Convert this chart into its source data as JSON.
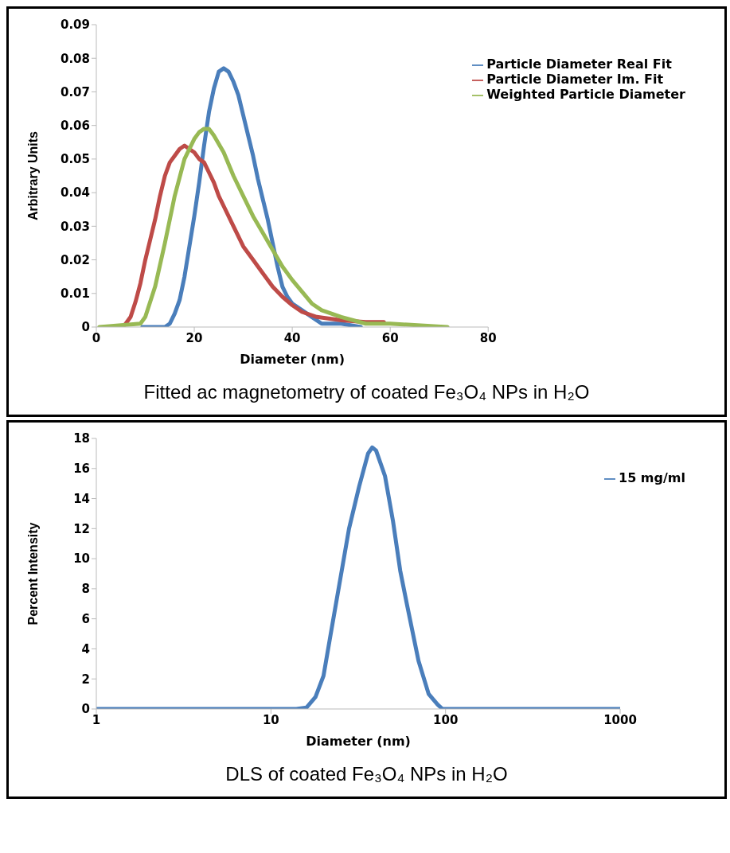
{
  "chart_data": [
    {
      "type": "line",
      "xlabel": "Diameter (nm)",
      "ylabel": "Arbitrary Units",
      "xlim": [
        0,
        80
      ],
      "xticks": [
        0,
        20,
        40,
        60,
        80
      ],
      "ylim": [
        0,
        0.09
      ],
      "yticks": [
        0,
        0.01,
        0.02,
        0.03,
        0.04,
        0.05,
        0.06,
        0.07,
        0.08,
        0.09
      ],
      "grid": false,
      "legend": "top right",
      "line_style": "solid",
      "annotations": [
        "Fitted ac magnetometry of coated Fe₃O₄ NPs in H₂O"
      ],
      "series": [
        {
          "name": "Particle Diameter Real Fit",
          "color": "#4a7ebb",
          "x": [
            9.4,
            14,
            15,
            16,
            17,
            18,
            19,
            20,
            21,
            22,
            23,
            24,
            25,
            26,
            27,
            28,
            29,
            30,
            31,
            32,
            33,
            34,
            35,
            36,
            37,
            38,
            39,
            40,
            42,
            44,
            46,
            50,
            54
          ],
          "values": [
            0,
            0,
            0.001,
            0.004,
            0.008,
            0.015,
            0.024,
            0.033,
            0.043,
            0.054,
            0.064,
            0.071,
            0.076,
            0.077,
            0.076,
            0.073,
            0.069,
            0.063,
            0.057,
            0.051,
            0.044,
            0.038,
            0.032,
            0.025,
            0.018,
            0.012,
            0.009,
            0.007,
            0.005,
            0.003,
            0.001,
            0.001,
            0
          ]
        },
        {
          "name": "Particle Diameter Im. Fit",
          "color": "#be4b48",
          "x": [
            5.3,
            6,
            7,
            8,
            9,
            10,
            11,
            12,
            13,
            14,
            15,
            16,
            17,
            18,
            19,
            20,
            21,
            22,
            23,
            24,
            25,
            26,
            28,
            30,
            32,
            34,
            36,
            38,
            40,
            42,
            45,
            50,
            55,
            58.7
          ],
          "values": [
            0,
            0.001,
            0.003,
            0.0075,
            0.013,
            0.02,
            0.026,
            0.032,
            0.039,
            0.045,
            0.049,
            0.051,
            0.053,
            0.054,
            0.053,
            0.052,
            0.05,
            0.049,
            0.046,
            0.043,
            0.039,
            0.036,
            0.03,
            0.024,
            0.02,
            0.016,
            0.012,
            0.009,
            0.0065,
            0.0045,
            0.003,
            0.002,
            0.0015,
            0.0015
          ]
        },
        {
          "name": "Weighted Particle Diameter",
          "color": "#98b954",
          "x": [
            0.6,
            9,
            10,
            12,
            14,
            16,
            18,
            20,
            21,
            22,
            23,
            24,
            26,
            28,
            30,
            32,
            34,
            36,
            38,
            40,
            42,
            44,
            46,
            50,
            55,
            60,
            71.7
          ],
          "values": [
            0,
            0.001,
            0.003,
            0.012,
            0.025,
            0.039,
            0.05,
            0.056,
            0.058,
            0.059,
            0.059,
            0.057,
            0.052,
            0.045,
            0.039,
            0.033,
            0.028,
            0.023,
            0.018,
            0.014,
            0.0105,
            0.007,
            0.005,
            0.003,
            0.001,
            0.001,
            0
          ]
        }
      ]
    },
    {
      "type": "line",
      "xlabel": "Diameter (nm)",
      "ylabel": "Percent Intensity",
      "log": "x",
      "xlim": [
        1,
        1000
      ],
      "xticks": [
        1,
        10,
        100,
        1000
      ],
      "ylim": [
        0,
        18
      ],
      "yticks": [
        0,
        2,
        4,
        6,
        8,
        10,
        12,
        14,
        16,
        18
      ],
      "grid": false,
      "legend": "top right",
      "line_style": "solid",
      "annotations": [
        "DLS of coated Fe₃O₄ NPs in H₂O"
      ],
      "series": [
        {
          "name": "15 mg/ml",
          "color": "#4a7ebb",
          "x": [
            1,
            14,
            16,
            18,
            20,
            22,
            25,
            28,
            32,
            36,
            38,
            40,
            45,
            50,
            55,
            60,
            70,
            80,
            90,
            96,
            1000
          ],
          "values": [
            0,
            0,
            0.1,
            0.8,
            2.2,
            5,
            8.7,
            12,
            14.8,
            17,
            17.4,
            17.2,
            15.5,
            12.5,
            9.2,
            7,
            3.2,
            1,
            0.3,
            0,
            0
          ]
        }
      ]
    }
  ]
}
